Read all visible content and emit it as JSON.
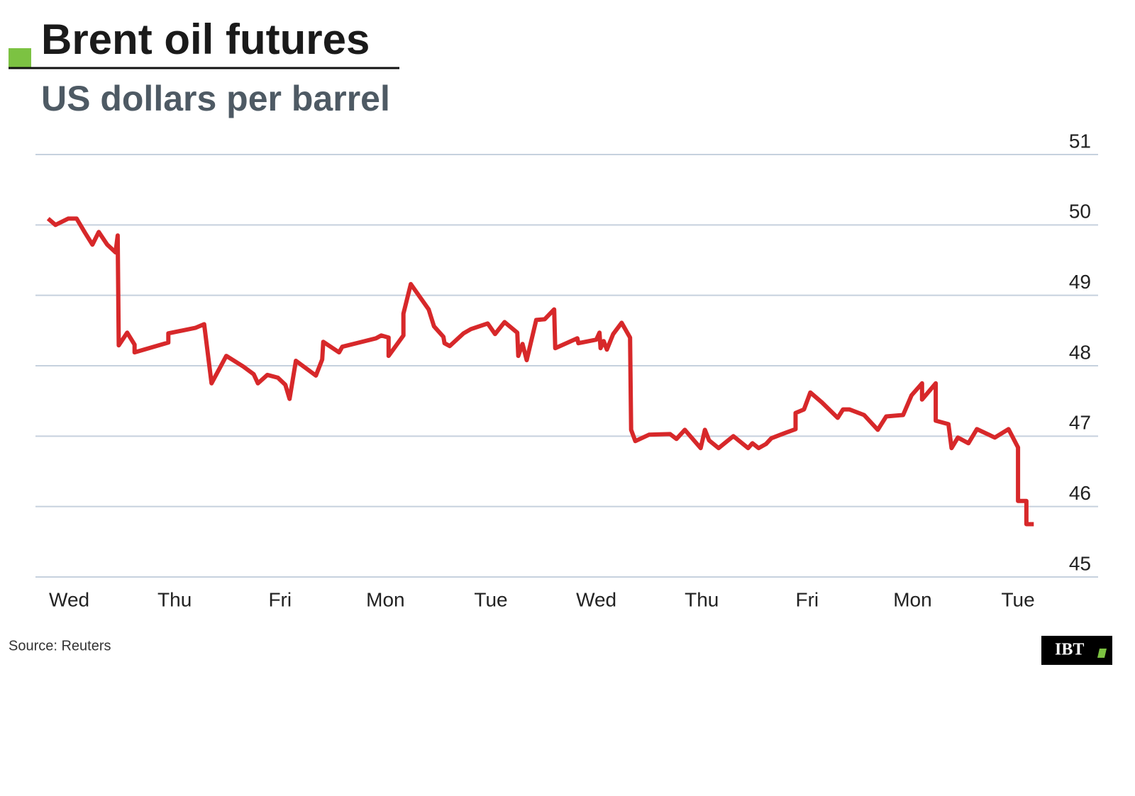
{
  "chart_data": {
    "type": "line",
    "title": "Brent oil futures",
    "subtitle": "US dollars per barrel",
    "source": "Source: Reuters",
    "logo": "IBT",
    "color": "#d7282a",
    "grid": true,
    "xlim": [
      -0.32,
      9.76
    ],
    "xticks": [
      {
        "value": 0,
        "label": "Wed"
      },
      {
        "value": 1,
        "label": "Thu"
      },
      {
        "value": 2,
        "label": "Fri"
      },
      {
        "value": 3,
        "label": "Mon"
      },
      {
        "value": 4,
        "label": "Tue"
      },
      {
        "value": 5,
        "label": "Wed"
      },
      {
        "value": 6,
        "label": "Thu"
      },
      {
        "value": 7,
        "label": "Fri"
      },
      {
        "value": 8,
        "label": "Mon"
      },
      {
        "value": 9,
        "label": "Tue"
      }
    ],
    "ylim": [
      45,
      51
    ],
    "yticks": [
      45,
      46,
      47,
      48,
      49,
      50,
      51
    ],
    "x": [
      -0.2,
      -0.13,
      -0.01,
      0.07,
      0.15,
      0.22,
      0.28,
      0.36,
      0.44,
      0.46,
      0.47,
      0.55,
      0.62,
      0.62,
      0.94,
      0.94,
      1.2,
      1.28,
      1.35,
      1.49,
      1.65,
      1.75,
      1.79,
      1.88,
      1.98,
      2.05,
      2.09,
      2.15,
      2.34,
      2.4,
      2.41,
      2.56,
      2.59,
      2.91,
      2.96,
      3.03,
      3.03,
      3.17,
      3.17,
      3.24,
      3.41,
      3.46,
      3.55,
      3.56,
      3.61,
      3.74,
      3.81,
      3.97,
      4.04,
      4.13,
      4.25,
      4.26,
      4.3,
      4.34,
      4.43,
      4.51,
      4.6,
      4.61,
      4.82,
      4.83,
      5.0,
      5.03,
      5.04,
      5.07,
      5.1,
      5.16,
      5.24,
      5.32,
      5.33,
      5.37,
      5.5,
      5.7,
      5.76,
      5.84,
      5.99,
      6.03,
      6.07,
      6.16,
      6.3,
      6.44,
      6.48,
      6.54,
      6.61,
      6.66,
      6.78,
      6.89,
      6.89,
      6.97,
      7.03,
      7.14,
      7.29,
      7.34,
      7.4,
      7.54,
      7.67,
      7.75,
      7.91,
      7.99,
      8.09,
      8.09,
      8.22,
      8.22,
      8.34,
      8.37,
      8.43,
      8.53,
      8.61,
      8.78,
      8.91,
      9.0,
      9.0,
      9.08,
      9.08,
      9.15
    ],
    "values": [
      50.09,
      50.0,
      50.09,
      50.09,
      49.89,
      49.72,
      49.9,
      49.72,
      49.61,
      49.85,
      48.29,
      48.47,
      48.3,
      48.19,
      48.33,
      48.46,
      48.54,
      48.59,
      47.75,
      48.14,
      47.99,
      47.88,
      47.75,
      47.87,
      47.83,
      47.73,
      47.53,
      48.07,
      47.86,
      48.09,
      48.34,
      48.19,
      48.27,
      48.39,
      48.43,
      48.4,
      48.14,
      48.43,
      48.74,
      49.16,
      48.8,
      48.56,
      48.41,
      48.32,
      48.28,
      48.46,
      48.52,
      48.6,
      48.45,
      48.62,
      48.47,
      48.14,
      48.31,
      48.08,
      48.65,
      48.66,
      48.8,
      48.25,
      48.39,
      48.32,
      48.37,
      48.47,
      48.25,
      48.35,
      48.23,
      48.45,
      48.61,
      48.4,
      47.09,
      46.93,
      47.02,
      47.03,
      46.96,
      47.09,
      46.83,
      47.09,
      46.94,
      46.83,
      47.0,
      46.83,
      46.9,
      46.83,
      46.89,
      46.97,
      47.04,
      47.1,
      47.33,
      47.38,
      47.62,
      47.48,
      47.26,
      47.38,
      47.38,
      47.3,
      47.09,
      47.28,
      47.3,
      47.58,
      47.75,
      47.52,
      47.75,
      47.22,
      47.17,
      46.83,
      46.98,
      46.9,
      47.1,
      46.98,
      47.1,
      46.84,
      46.08,
      46.08,
      45.75,
      45.75
    ]
  }
}
